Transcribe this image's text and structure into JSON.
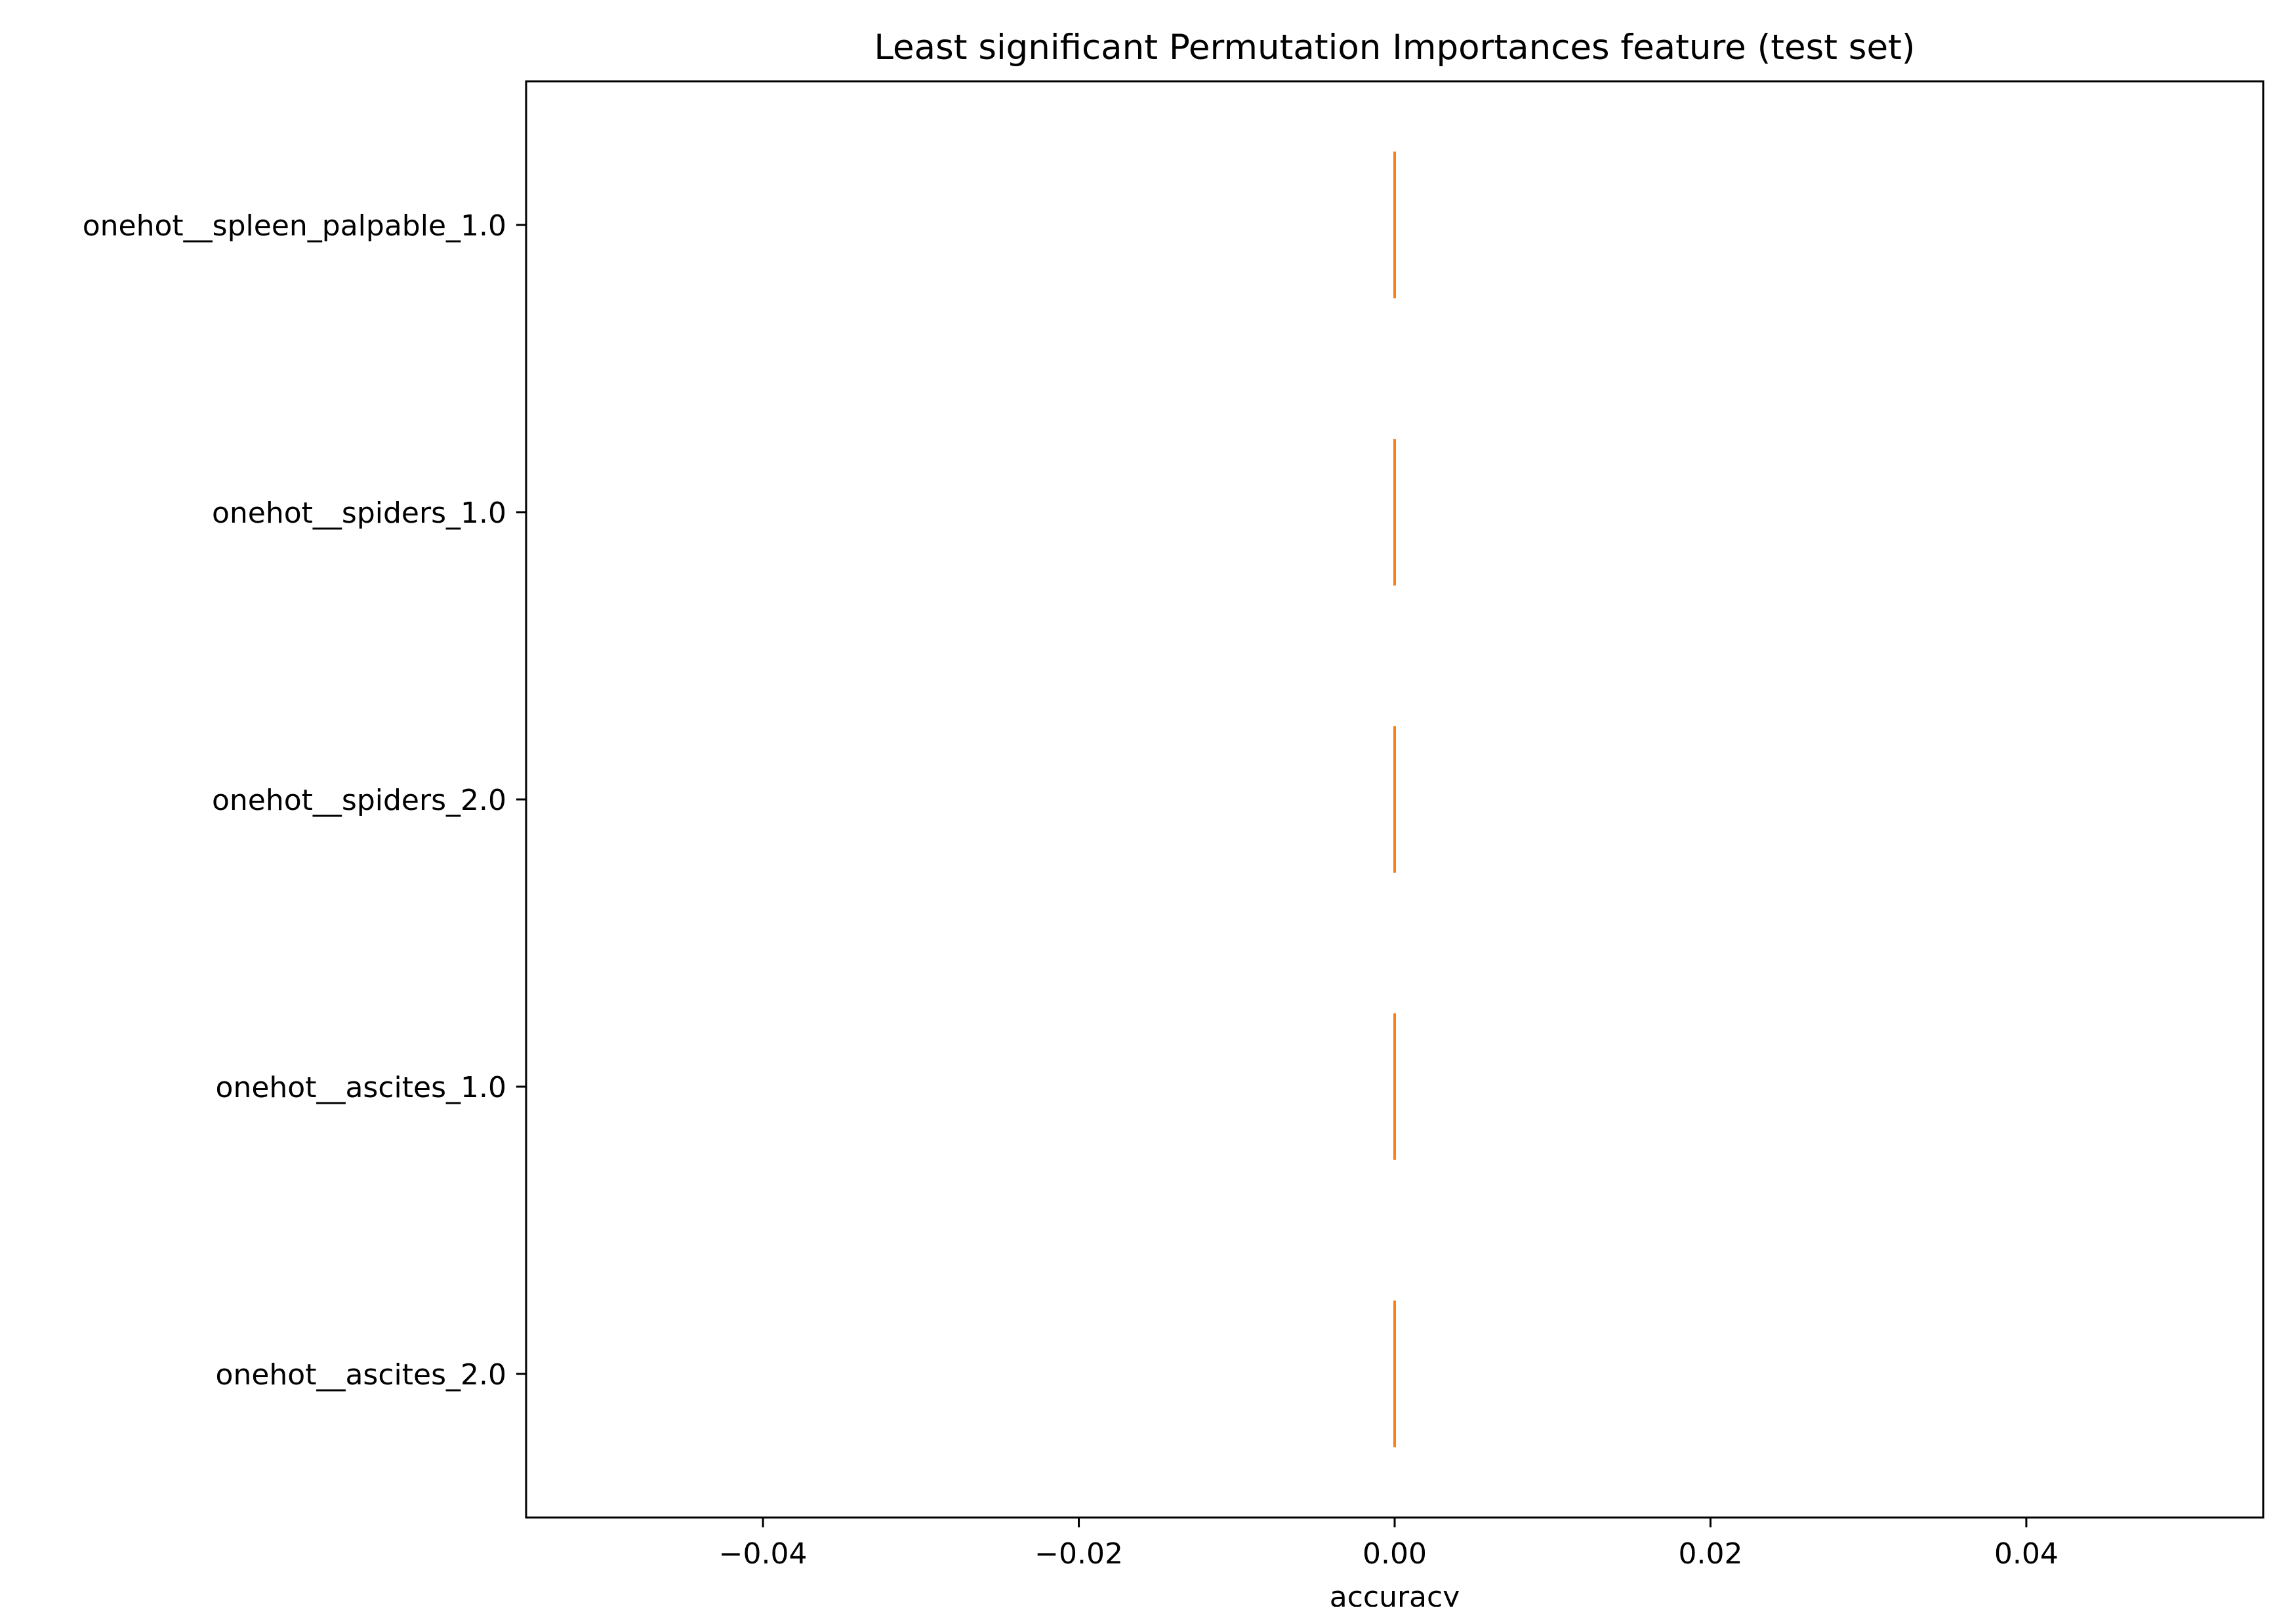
{
  "chart_data": {
    "type": "boxplot",
    "title": "Least significant Permutation Importances feature (test set)",
    "xlabel": "accuracy",
    "ylabel": "",
    "xlim": [
      -0.055,
      0.055
    ],
    "x_ticks": [
      -0.04,
      -0.02,
      0.0,
      0.02,
      0.04
    ],
    "x_tick_labels": [
      "−0.04",
      "−0.02",
      "0.00",
      "0.02",
      "0.04"
    ],
    "orientation": "horizontal",
    "grid": false,
    "categories": [
      "onehot__spleen_palpable_1.0",
      "onehot__spiders_1.0",
      "onehot__spiders_2.0",
      "onehot__ascites_1.0",
      "onehot__ascites_2.0"
    ],
    "values": [
      0.0,
      0.0,
      0.0,
      0.0,
      0.0
    ],
    "median_color": "#ff7f0e",
    "box_color": "#000000"
  }
}
